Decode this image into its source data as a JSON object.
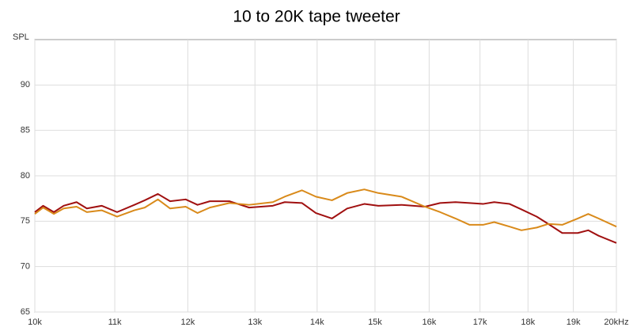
{
  "chart_data": {
    "type": "line",
    "title": "10 to 20K tape tweeter",
    "y_label": "SPL",
    "x": [
      10000,
      10100,
      10230,
      10350,
      10510,
      10640,
      10830,
      11030,
      11260,
      11400,
      11580,
      11750,
      11970,
      12140,
      12320,
      12610,
      12910,
      13280,
      13470,
      13750,
      13980,
      14250,
      14510,
      14810,
      15060,
      15480,
      15920,
      16210,
      16510,
      16790,
      17060,
      17290,
      17610,
      17860,
      18190,
      18440,
      18750,
      19100,
      19340,
      19580,
      20000
    ],
    "series": [
      {
        "color": "#a01010",
        "values": [
          76.0,
          76.7,
          76.0,
          76.7,
          77.1,
          76.4,
          76.7,
          76.0,
          76.8,
          77.3,
          78.0,
          77.2,
          77.4,
          76.8,
          77.2,
          77.2,
          76.5,
          76.7,
          77.1,
          77.0,
          75.9,
          75.3,
          76.4,
          76.9,
          76.7,
          76.8,
          76.6,
          77.0,
          77.1,
          77.0,
          76.9,
          77.1,
          76.9,
          76.3,
          75.5,
          74.7,
          73.7,
          73.7,
          74.0,
          73.4,
          72.6
        ]
      },
      {
        "color": "#d98a1a",
        "values": [
          75.8,
          76.5,
          75.8,
          76.4,
          76.6,
          76.0,
          76.2,
          75.5,
          76.2,
          76.5,
          77.4,
          76.4,
          76.6,
          75.9,
          76.5,
          77.0,
          76.8,
          77.1,
          77.7,
          78.4,
          77.7,
          77.3,
          78.1,
          78.5,
          78.1,
          77.7,
          76.6,
          76.0,
          75.3,
          74.6,
          74.6,
          74.9,
          74.4,
          74.0,
          74.3,
          74.7,
          74.6,
          75.3,
          75.8,
          75.3,
          74.4
        ]
      }
    ],
    "xscale": "log",
    "xlim": [
      10000,
      20000
    ],
    "xticks": [
      {
        "value": 10000,
        "label": "10k"
      },
      {
        "value": 11000,
        "label": "11k"
      },
      {
        "value": 12000,
        "label": "12k"
      },
      {
        "value": 13000,
        "label": "13k"
      },
      {
        "value": 14000,
        "label": "14k"
      },
      {
        "value": 15000,
        "label": "15k"
      },
      {
        "value": 16000,
        "label": "16k"
      },
      {
        "value": 17000,
        "label": "17k"
      },
      {
        "value": 18000,
        "label": "18k"
      },
      {
        "value": 19000,
        "label": "19k"
      },
      {
        "value": 20000,
        "label": "20kHz"
      }
    ],
    "ylim": [
      65,
      95
    ],
    "yticks": [
      65,
      70,
      75,
      80,
      85,
      90
    ],
    "grid": true
  }
}
